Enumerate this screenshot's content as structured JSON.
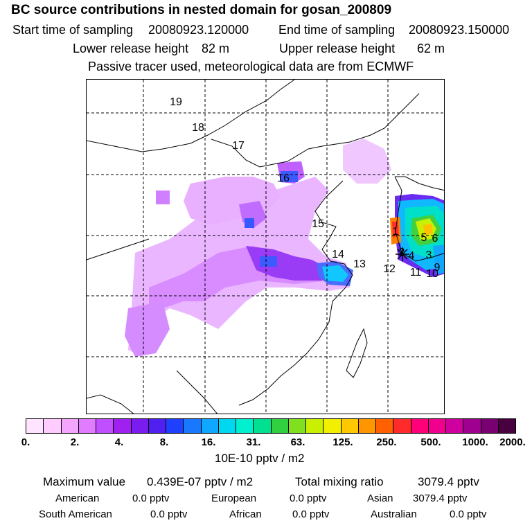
{
  "title": "BC  source contributions in nested domain for gosan_200809",
  "header": {
    "start_label": "Start time of sampling",
    "start_value": "20080923.120000",
    "end_label": "End time of sampling",
    "end_value": "20080923.150000",
    "lower_label": "Lower release height",
    "lower_value": "82 m",
    "upper_label": "Upper release height",
    "upper_value": "62 m",
    "tracer_note": "Passive tracer used, meteorological data are from ECMWF"
  },
  "map": {
    "region_labels": [
      "19",
      "18",
      "17",
      "16",
      "15",
      "14",
      "13",
      "12",
      "1",
      "2",
      "4",
      "5",
      "6",
      "3",
      "11",
      "10",
      "9"
    ]
  },
  "colorbar": {
    "colors": [
      "#ffe4ff",
      "#ffccff",
      "#f4a6ff",
      "#e27cff",
      "#c050ff",
      "#a020f0",
      "#7a1cf0",
      "#5020f0",
      "#2040ff",
      "#1878ff",
      "#10a8ff",
      "#00d8f0",
      "#00f0d0",
      "#00e090",
      "#30d040",
      "#80e020",
      "#c8f000",
      "#f0f000",
      "#ffc800",
      "#ff9600",
      "#ff6000",
      "#ff2a2a",
      "#ff0078",
      "#f0008c",
      "#d000a0",
      "#a00090",
      "#780070",
      "#480040"
    ],
    "ticks": [
      "0.",
      "2.",
      "4.",
      "8.",
      "16.",
      "31.",
      "63.",
      "125.",
      "250.",
      "500.",
      "1000.",
      "2000."
    ],
    "unit": "10E-10 pptv / m2"
  },
  "summary": {
    "max_label": "Maximum value",
    "max_value": "0.439E-07 pptv / m2",
    "total_label": "Total mixing ratio",
    "total_value": "3079.4 pptv",
    "sources": [
      {
        "name": "American",
        "value": "0.0 pptv"
      },
      {
        "name": "European",
        "value": "0.0 pptv"
      },
      {
        "name": "Asian",
        "value": "3079.4 pptv"
      },
      {
        "name": "South American",
        "value": "0.0 pptv"
      },
      {
        "name": "African",
        "value": "0.0 pptv"
      },
      {
        "name": "Australian",
        "value": "0.0 pptv"
      }
    ]
  }
}
